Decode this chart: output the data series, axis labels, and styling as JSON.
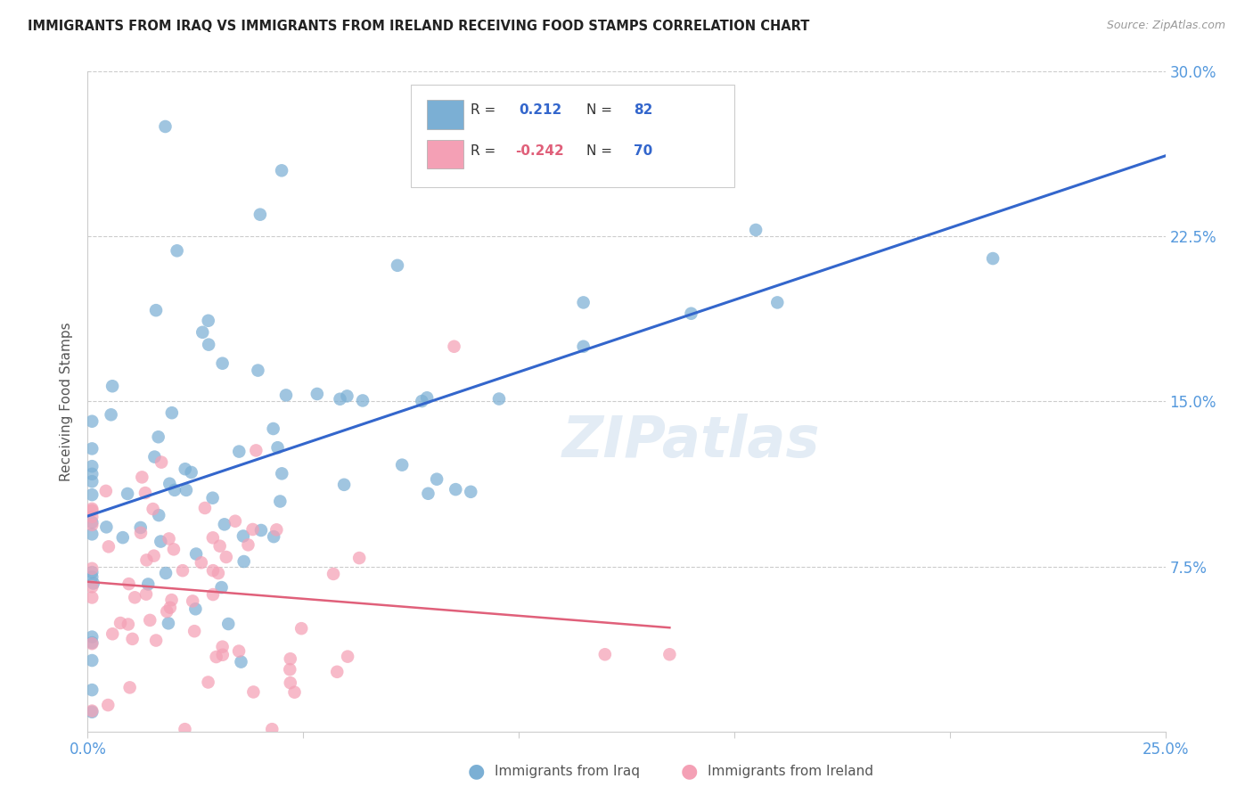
{
  "title": "IMMIGRANTS FROM IRAQ VS IMMIGRANTS FROM IRELAND RECEIVING FOOD STAMPS CORRELATION CHART",
  "source": "Source: ZipAtlas.com",
  "ylabel": "Receiving Food Stamps",
  "xlim": [
    0.0,
    0.25
  ],
  "ylim": [
    0.0,
    0.3
  ],
  "xtick_positions": [
    0.0,
    0.05,
    0.1,
    0.15,
    0.2,
    0.25
  ],
  "ytick_positions": [
    0.0,
    0.075,
    0.15,
    0.225,
    0.3
  ],
  "xticklabels": [
    "0.0%",
    "",
    "",
    "",
    "",
    "25.0%"
  ],
  "yticklabels": [
    "",
    "7.5%",
    "15.0%",
    "22.5%",
    "30.0%"
  ],
  "iraq_R": 0.212,
  "iraq_N": 82,
  "ireland_R": -0.242,
  "ireland_N": 70,
  "iraq_color": "#7bafd4",
  "ireland_color": "#f4a0b5",
  "iraq_line_color": "#3366cc",
  "ireland_line_color": "#e0607a",
  "legend_iraq": "Immigrants from Iraq",
  "legend_ireland": "Immigrants from Ireland",
  "watermark": "ZIPatlas",
  "background_color": "#ffffff",
  "grid_color": "#cccccc",
  "tick_label_color": "#5599dd",
  "title_color": "#222222",
  "source_color": "#999999",
  "ylabel_color": "#555555"
}
